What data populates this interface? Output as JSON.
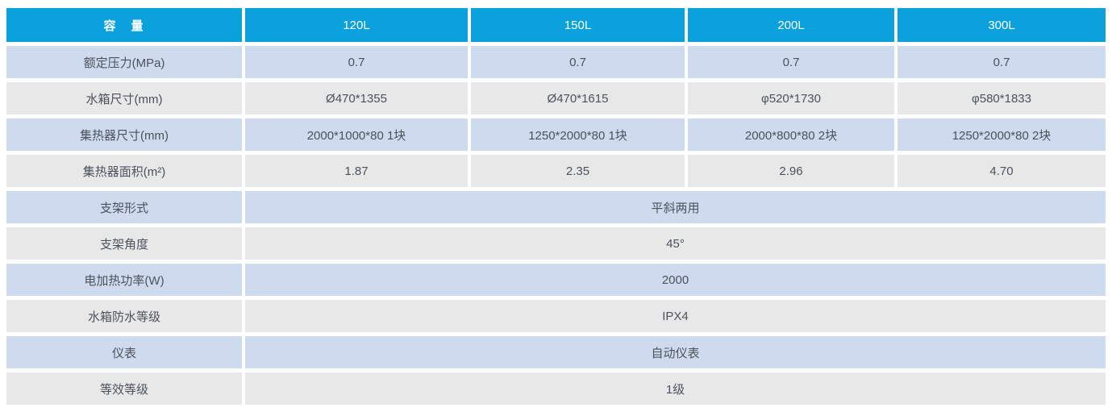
{
  "colors": {
    "header_bg": "#0aa1dc",
    "header_text": "#ffffff",
    "row_blue_bg": "#cedbee",
    "row_gray_bg": "#e8e8e8",
    "body_text": "#4b525c",
    "page_bg": "#ffffff"
  },
  "table": {
    "header": {
      "label": "容　量",
      "columns": [
        "120L",
        "150L",
        "200L",
        "300L"
      ]
    },
    "rows": [
      {
        "label": "额定压力(MPa)",
        "values": [
          "0.7",
          "0.7",
          "0.7",
          "0.7"
        ]
      },
      {
        "label": "水箱尺寸(mm)",
        "values": [
          "Ø470*1355",
          "Ø470*1615",
          "φ520*1730",
          "φ580*1833"
        ]
      },
      {
        "label": "集热器尺寸(mm)",
        "values": [
          "2000*1000*80 1块",
          "1250*2000*80 1块",
          "2000*800*80 2块",
          "1250*2000*80 2块"
        ]
      },
      {
        "label": "集热器面积(m²)",
        "values": [
          "1.87",
          "2.35",
          "2.96",
          "4.70"
        ]
      },
      {
        "label": "支架形式",
        "span_value": "平斜两用"
      },
      {
        "label": "支架角度",
        "span_value": "45°"
      },
      {
        "label": "电加热功率(W)",
        "span_value": "2000"
      },
      {
        "label": "水箱防水等级",
        "span_value": "IPX4"
      },
      {
        "label": "仪表",
        "span_value": "自动仪表"
      },
      {
        "label": "等效等级",
        "span_value": "1级"
      }
    ]
  }
}
